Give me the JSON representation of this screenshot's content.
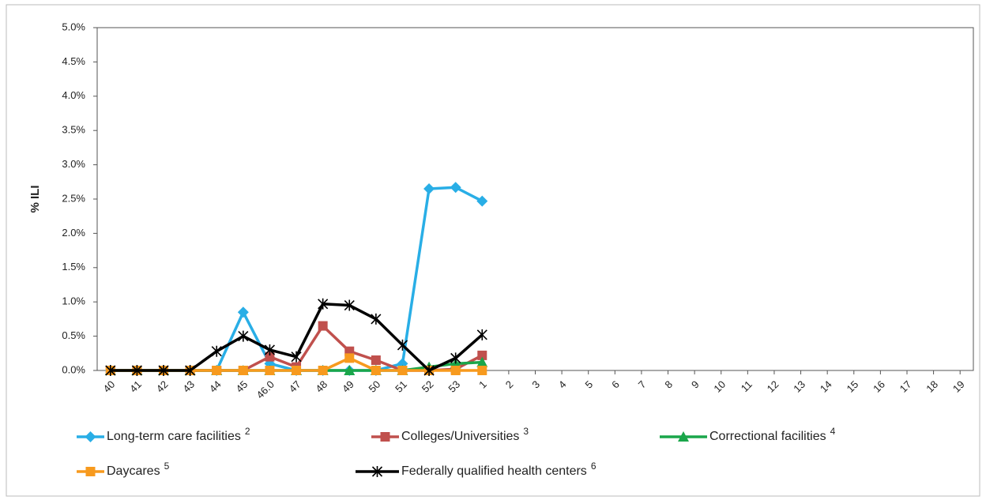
{
  "chart_data": {
    "type": "line",
    "y_label": "% ILI",
    "categories": [
      "40",
      "41",
      "42",
      "43",
      "44",
      "45",
      "46.0",
      "47",
      "48",
      "49",
      "50",
      "51",
      "52",
      "53",
      "1",
      "2",
      "3",
      "4",
      "5",
      "6",
      "7",
      "8",
      "9",
      "10",
      "11",
      "12",
      "13",
      "14",
      "15",
      "16",
      "17",
      "18",
      "19"
    ],
    "ylim": [
      0,
      5
    ],
    "yticks": [
      {
        "value": 0,
        "label": "0.0%"
      },
      {
        "value": 0.5,
        "label": "0.5%"
      },
      {
        "value": 1,
        "label": "1.0%"
      },
      {
        "value": 1.5,
        "label": "1.5%"
      },
      {
        "value": 2,
        "label": "2.0%"
      },
      {
        "value": 2.5,
        "label": "2.5%"
      },
      {
        "value": 3,
        "label": "3.0%"
      },
      {
        "value": 3.5,
        "label": "3.5%"
      },
      {
        "value": 4,
        "label": "4.0%"
      },
      {
        "value": 4.5,
        "label": "4.5%"
      },
      {
        "value": 5,
        "label": "5.0%"
      }
    ],
    "grid": false,
    "legend": "bottom",
    "series": [
      {
        "name": "Long-term care facilities",
        "footnote": "2",
        "color": "#29aee6",
        "marker": "diamond",
        "values": [
          0,
          0,
          0,
          0,
          0,
          0.85,
          0.1,
          0,
          0,
          0,
          0,
          0.1,
          2.65,
          2.67,
          2.47,
          null,
          null,
          null,
          null,
          null,
          null,
          null,
          null,
          null,
          null,
          null,
          null,
          null,
          null,
          null,
          null,
          null,
          null
        ]
      },
      {
        "name": "Colleges/Universities",
        "footnote": "3",
        "color": "#c0504d",
        "marker": "square",
        "values": [
          0,
          0,
          0,
          0,
          0,
          0,
          0.2,
          0.05,
          0.65,
          0.28,
          0.15,
          0,
          0,
          0.02,
          0.22,
          null,
          null,
          null,
          null,
          null,
          null,
          null,
          null,
          null,
          null,
          null,
          null,
          null,
          null,
          null,
          null,
          null,
          null
        ]
      },
      {
        "name": "Correctional facilities",
        "footnote": "4",
        "color": "#1aa64a",
        "marker": "triangle",
        "values": [
          0,
          0,
          0,
          0,
          0,
          0,
          0,
          0,
          0,
          0,
          0,
          0,
          0.05,
          0.1,
          0.12,
          null,
          null,
          null,
          null,
          null,
          null,
          null,
          null,
          null,
          null,
          null,
          null,
          null,
          null,
          null,
          null,
          null,
          null
        ]
      },
      {
        "name": "Daycares",
        "footnote": "5",
        "color": "#f79a1e",
        "marker": "square",
        "values": [
          0,
          0,
          0,
          0,
          0,
          0,
          0,
          0,
          0,
          0.18,
          0,
          0,
          0,
          0,
          0,
          null,
          null,
          null,
          null,
          null,
          null,
          null,
          null,
          null,
          null,
          null,
          null,
          null,
          null,
          null,
          null,
          null,
          null
        ]
      },
      {
        "name": "Federally qualified health centers",
        "footnote": "6",
        "color": "#000000",
        "marker": "star",
        "values": [
          0,
          0,
          0,
          0,
          0.28,
          0.5,
          0.3,
          0.2,
          0.97,
          0.95,
          0.75,
          0.37,
          0,
          0.18,
          0.52,
          null,
          null,
          null,
          null,
          null,
          null,
          null,
          null,
          null,
          null,
          null,
          null,
          null,
          null,
          null,
          null,
          null,
          null
        ]
      }
    ]
  }
}
